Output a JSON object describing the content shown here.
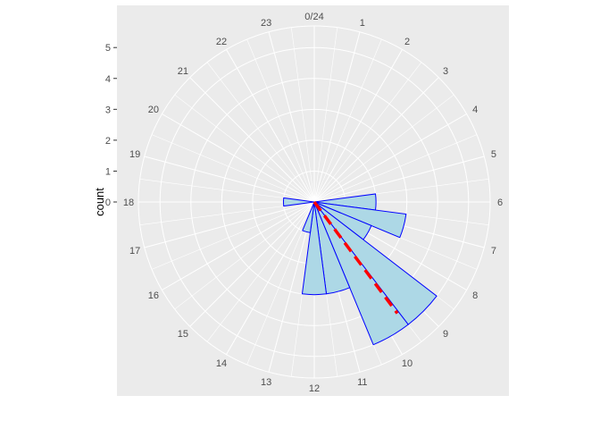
{
  "chart_data": {
    "type": "bar",
    "coord": "polar",
    "ylabel": "count",
    "hour_labels": [
      "0/24",
      "1",
      "2",
      "3",
      "4",
      "5",
      "6",
      "7",
      "8",
      "9",
      "10",
      "11",
      "12",
      "13",
      "14",
      "15",
      "16",
      "17",
      "18",
      "19",
      "20",
      "21",
      "22",
      "23"
    ],
    "y_ticks": [
      0,
      1,
      2,
      3,
      4,
      5
    ],
    "ylim": [
      0,
      5.7
    ],
    "bars": [
      {
        "hour": 6,
        "count": 2.0
      },
      {
        "hour": 7,
        "count": 3.0
      },
      {
        "hour": 8,
        "count": 2.0
      },
      {
        "hour": 9,
        "count": 5.0
      },
      {
        "hour": 10,
        "count": 5.0
      },
      {
        "hour": 11,
        "count": 3.0
      },
      {
        "hour": 12,
        "count": 3.0
      },
      {
        "hour": 13,
        "count": 1.0
      },
      {
        "hour": 18,
        "count": 1.0
      }
    ],
    "mean_line": {
      "hour": 9.55,
      "count": 4.5
    },
    "grid": true,
    "colors": {
      "panel": "#ebebeb",
      "grid": "#ffffff",
      "bar_fill": "#add8e6",
      "bar_stroke": "#0000ff",
      "mean_line": "#ff0000"
    }
  }
}
